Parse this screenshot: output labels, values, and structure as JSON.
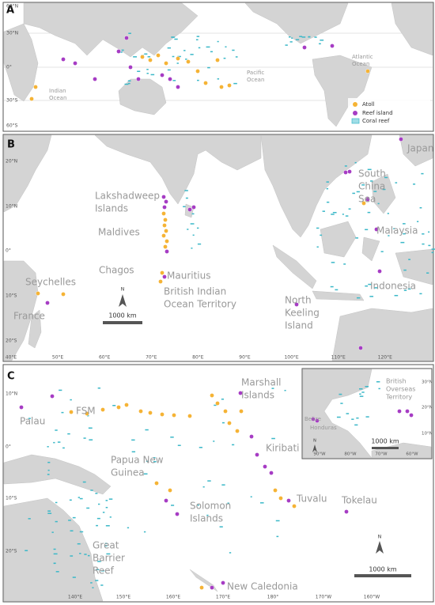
{
  "panels": [
    {
      "label": "A",
      "latitude_labels": [
        "60°N",
        "30°N",
        "0°",
        "30°S",
        "60°S"
      ],
      "place_labels": [
        [
          "Indian",
          "Ocean"
        ],
        [
          "Pacific",
          "Ocean"
        ],
        [
          "Atlantic",
          "Ocean"
        ]
      ],
      "legend": [
        "Atoll",
        "Reef island",
        "Coral reef"
      ]
    },
    {
      "label": "B",
      "latitude_labels": [
        "20°N",
        "10°N",
        "0°",
        "10°S",
        "20°S"
      ],
      "longitude_labels": [
        "40°E",
        "50°E",
        "60°E",
        "70°E",
        "80°E",
        "90°E",
        "100°E",
        "110°E",
        "120°E"
      ],
      "place_labels": [
        [
          "Japan"
        ],
        [
          "South",
          "China",
          "Sea"
        ],
        [
          "Lakshadweep",
          "Islands"
        ],
        [
          "Maldives"
        ],
        [
          "Malaysia"
        ],
        [
          "Chagos"
        ],
        [
          "Mauritius"
        ],
        [
          "British Indian",
          "Ocean Territory"
        ],
        [
          "Seychelles"
        ],
        [
          "France"
        ],
        [
          "North",
          "Keeling",
          "Island"
        ],
        [
          "Indonesia"
        ]
      ],
      "north": "N",
      "scale_bar": "1000 km"
    },
    {
      "label": "C",
      "latitude_labels": [
        "10°N",
        "0°",
        "10°S",
        "20°S"
      ],
      "longitude_labels": [
        "140°E",
        "150°E",
        "160°E",
        "170°E",
        "180°",
        "170°W",
        "160°W"
      ],
      "place_labels": [
        [
          "FSM"
        ],
        [
          "Marshall",
          "Islands"
        ],
        [
          "Palau"
        ],
        [
          "Kiribati"
        ],
        [
          "Papua New",
          "Guinea"
        ],
        [
          "Solomon",
          "Islands"
        ],
        [
          "Tuvalu"
        ],
        [
          "Tokelau"
        ],
        [
          "Great",
          "Barrier",
          "Reef"
        ],
        [
          "New Caledonia"
        ]
      ],
      "north": "N",
      "scale_bar": "1000 km",
      "inset": {
        "latitude_labels": [
          "30°N",
          "20°N",
          "10°N"
        ],
        "longitude_labels": [
          "90°W",
          "80°W",
          "70°W",
          "60°W"
        ],
        "place_labels": [
          [
            "British",
            "Overseas",
            "Territory"
          ],
          [
            "Belize"
          ],
          [
            "Honduras"
          ]
        ],
        "north": "N",
        "scale_bar": "1000 km"
      }
    }
  ]
}
